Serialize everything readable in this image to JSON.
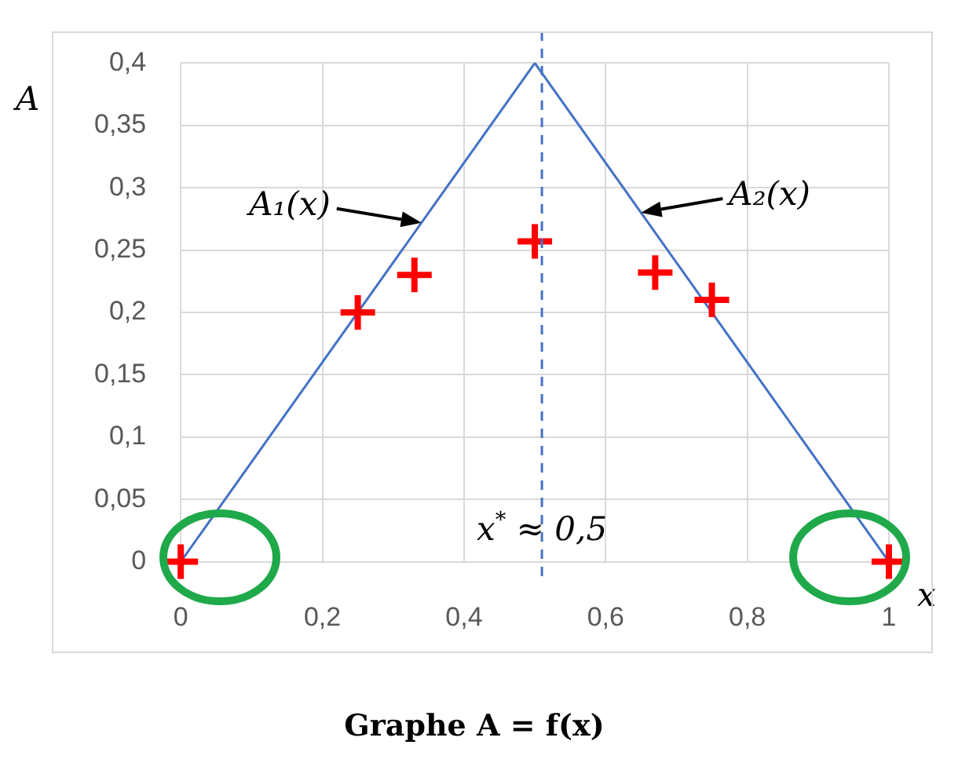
{
  "chart_data": {
    "type": "scatter",
    "title": "Graphe A = f(x)",
    "xlabel": "x",
    "ylabel": "A",
    "xlim": [
      0,
      1
    ],
    "xticks": [
      0,
      {
        "value": 0.2,
        "label": "0,2"
      },
      {
        "value": 0.4,
        "label": "0,4"
      },
      {
        "value": 0.6,
        "label": "0,6"
      },
      {
        "value": 0.8,
        "label": "0,8"
      },
      1
    ],
    "ylim": [
      0,
      0.4
    ],
    "yticks": [
      0,
      {
        "value": 0.05,
        "label": "0,05"
      },
      {
        "value": 0.1,
        "label": "0,1"
      },
      {
        "value": 0.15,
        "label": "0,15"
      },
      {
        "value": 0.2,
        "label": "0,2"
      },
      {
        "value": 0.25,
        "label": "0,25"
      },
      {
        "value": 0.3,
        "label": "0,3"
      },
      {
        "value": 0.35,
        "label": "0,35"
      },
      {
        "value": 0.4,
        "label": "0,4"
      }
    ],
    "grid": true,
    "legend": false,
    "series": [
      {
        "type": "line",
        "color": "#4472c4",
        "x": [
          0,
          0.5
        ],
        "values": [
          0,
          0.4
        ],
        "marker": "none",
        "line_style": "solid"
      },
      {
        "type": "line",
        "color": "#4472c4",
        "x": [
          0.5,
          1
        ],
        "values": [
          0.4,
          0
        ],
        "marker": "none",
        "line_style": "solid"
      },
      {
        "color": "#ff0000",
        "marker": "cross",
        "x": [
          0,
          0.25,
          0.33,
          0.5,
          0.67,
          0.75,
          1
        ],
        "values": [
          0,
          0.2,
          0.23,
          0.257,
          0.232,
          0.21,
          0
        ]
      }
    ],
    "ref_lines": [
      {
        "axis": "x",
        "value": 0.51,
        "label": "x$^{*}$ ≈ 0,5",
        "color": "#4472c4",
        "line_style": "dashed"
      }
    ],
    "annotations": [
      {
        "text": "A₁(x)",
        "x": 0.34,
        "y": 0.272
      },
      {
        "text": "A₂(x)",
        "x": 0.65,
        "y": 0.28
      }
    ]
  }
}
